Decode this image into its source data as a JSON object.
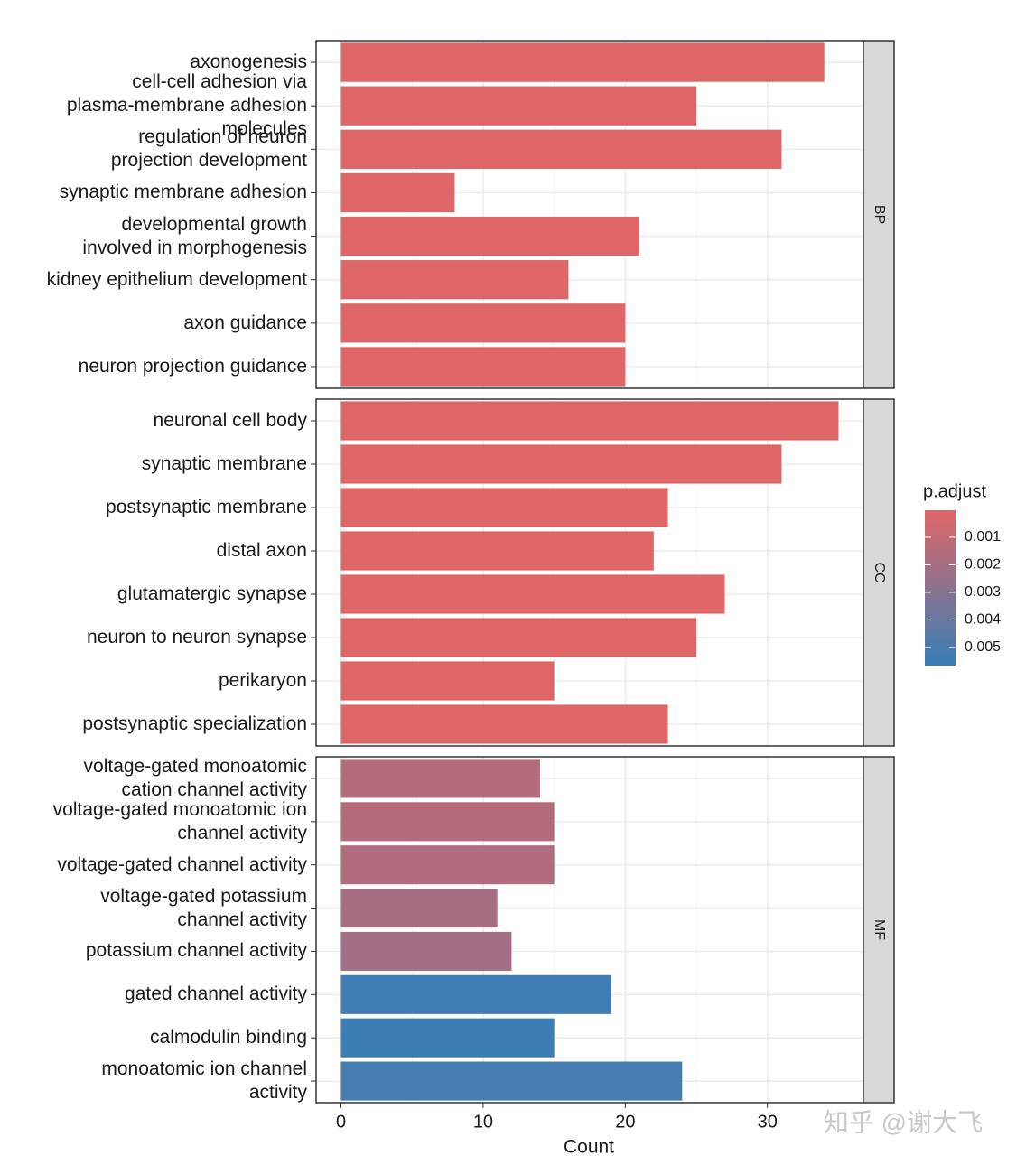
{
  "chart_data": {
    "type": "bar",
    "orientation": "horizontal",
    "x_label": "Count",
    "xlim": [
      -1.75,
      36.75
    ],
    "xticks": [
      0,
      10,
      20,
      30
    ],
    "grid": true,
    "low_color": "#e06666",
    "high_color": "#377eb8",
    "facets": [
      {
        "label": "BP",
        "categories": [
          "axonogenesis",
          "cell-cell adhesion via\nplasma-membrane adhesion\nmolecules",
          "regulation of neuron\nprojection development",
          "synaptic membrane adhesion",
          "developmental growth\ninvolved in morphogenesis",
          "kidney epithelium development",
          "axon guidance",
          "neuron projection guidance"
        ],
        "values": [
          34,
          25,
          31,
          8,
          21,
          16,
          20,
          20
        ],
        "p_adjust": [
          0.0001,
          0.0001,
          0.0001,
          0.0001,
          0.0001,
          0.0001,
          0.0001,
          0.0001
        ]
      },
      {
        "label": "CC",
        "categories": [
          "neuronal cell body",
          "synaptic membrane",
          "postsynaptic membrane",
          "distal axon",
          "glutamatergic synapse",
          "neuron to neuron synapse",
          "perikaryon",
          "postsynaptic specialization"
        ],
        "values": [
          35,
          31,
          23,
          22,
          27,
          25,
          15,
          23
        ],
        "p_adjust": [
          0.0001,
          0.0001,
          0.0001,
          0.0001,
          0.0001,
          0.0001,
          0.0001,
          0.0001
        ]
      },
      {
        "label": "MF",
        "categories": [
          "voltage-gated monoatomic\ncation channel activity",
          "voltage-gated monoatomic ion\nchannel activity",
          "voltage-gated channel activity",
          "voltage-gated potassium\nchannel activity",
          "potassium channel activity",
          "gated channel activity",
          "calmodulin binding",
          "monoatomic ion channel\nactivity"
        ],
        "values": [
          14,
          15,
          15,
          11,
          12,
          19,
          15,
          24
        ],
        "p_adjust": [
          0.0015,
          0.0015,
          0.0016,
          0.002,
          0.0021,
          0.0054,
          0.0055,
          0.0052
        ]
      }
    ],
    "legend": {
      "title": "p.adjust",
      "lim": [
        2e-05,
        0.00566
      ],
      "ticks": [
        0.001,
        0.002,
        0.003,
        0.004,
        0.005
      ]
    },
    "watermark": "知乎 @谢大飞"
  }
}
